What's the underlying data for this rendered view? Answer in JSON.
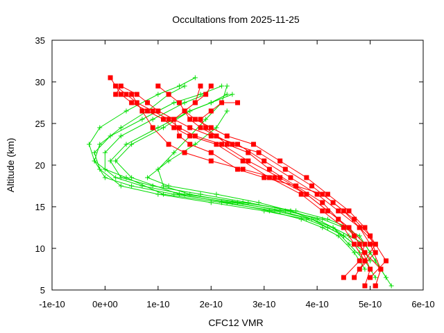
{
  "chart_data": {
    "type": "line",
    "title": "Occultations from 2025-11-25",
    "xlabel": "CFC12 VMR",
    "ylabel": "Altitude (km)",
    "xlim": [
      -1e-10,
      6e-10
    ],
    "ylim": [
      5,
      35
    ],
    "x_tick_labels": [
      "-1e-10",
      "0e+00",
      "1e-10",
      "2e-10",
      "3e-10",
      "4e-10",
      "5e-10",
      "6e-10"
    ],
    "x_tick_values": [
      -1e-10,
      0,
      1e-10,
      2e-10,
      3e-10,
      4e-10,
      5e-10,
      6e-10
    ],
    "y_tick_labels": [
      "5",
      "10",
      "15",
      "20",
      "25",
      "30",
      "35"
    ],
    "y_tick_values": [
      5,
      10,
      15,
      20,
      25,
      30,
      35
    ],
    "grid": false,
    "legend": "none",
    "series": [
      {
        "name": "red profiles",
        "color": "#ff0000",
        "marker": "filled-square",
        "profiles": [
          {
            "x": [
              4.9e-10,
              5e-10,
              4.8e-10,
              4.6e-10,
              4.2e-10,
              3.8e-10,
              3.3e-10,
              2.7e-10,
              2.2e-10,
              1.7e-10,
              1.4e-10,
              1.2e-10,
              9e-11,
              6e-11,
              4e-11,
              2e-11,
              1e-11
            ],
            "y": [
              5.5,
              7.5,
              10.5,
              12.5,
              14.5,
              16.5,
              18.5,
              20.5,
              22.5,
              23.5,
              24.5,
              25.5,
              26.5,
              27.5,
              28.5,
              29.5,
              30.5
            ]
          },
          {
            "x": [
              5.1e-10,
              5.2e-10,
              5e-10,
              4.8e-10,
              4.4e-10,
              4e-10,
              3.5e-10,
              3e-10,
              2.5e-10,
              2e-10,
              1.6e-10,
              1.3e-10,
              1e-10,
              8e-11,
              6e-11,
              3e-11,
              2e-11
            ],
            "y": [
              5.5,
              7.5,
              10.5,
              12.5,
              14.5,
              16.5,
              18.5,
              20.5,
              22.5,
              23.5,
              24.5,
              25.5,
              26.5,
              27.5,
              28.5,
              29.5,
              28.5
            ]
          },
          {
            "x": [
              4.7e-10,
              4.9e-10,
              4.7e-10,
              4.5e-10,
              4.1e-10,
              3.7e-10,
              3.1e-10,
              2.6e-10,
              2.1e-10,
              1.6e-10,
              1.3e-10,
              1.1e-10,
              8e-11,
              5e-11,
              3e-11,
              2e-11,
              3e-11
            ],
            "y": [
              6.5,
              8.5,
              10.5,
              12.5,
              14.5,
              16.5,
              18.5,
              20.5,
              22.5,
              23.5,
              24.5,
              25.5,
              26.5,
              27.5,
              28.5,
              29.5,
              28.5
            ]
          },
          {
            "x": [
              5e-10,
              5.3e-10,
              5.1e-10,
              4.9e-10,
              4.6e-10,
              4.2e-10,
              3.8e-10,
              3.3e-10,
              2.8e-10,
              2.3e-10,
              2e-10,
              1.7e-10,
              1.5e-10,
              1.4e-10,
              1.2e-10,
              1e-10
            ],
            "y": [
              6.5,
              8.5,
              10.5,
              12.5,
              14.5,
              16.5,
              18.5,
              20.5,
              22.5,
              23.5,
              24.5,
              25.5,
              26.5,
              27.5,
              28.5,
              29.5
            ]
          },
          {
            "x": [
              4.8e-10,
              5.1e-10,
              5e-10,
              4.7e-10,
              4.3e-10,
              3.9e-10,
              3.4e-10,
              2.9e-10,
              2.4e-10,
              2.1e-10,
              1.8e-10,
              1.6e-10,
              1.5e-10,
              1.7e-10,
              1.9e-10,
              2e-10
            ],
            "y": [
              7.5,
              9.5,
              11.5,
              13.5,
              15.5,
              17.5,
              19.5,
              21.5,
              22.5,
              23.5,
              24.5,
              25.5,
              26.5,
              27.5,
              28.5,
              29.5
            ]
          },
          {
            "x": [
              4.5e-10,
              4.8e-10,
              4.9e-10,
              4.6e-10,
              4.2e-10,
              3.8e-10,
              3.2e-10,
              2.6e-10,
              2e-10,
              1.5e-10,
              1.2e-10,
              9e-11,
              7e-11,
              5e-11
            ],
            "y": [
              6.5,
              8.5,
              10.5,
              12.5,
              14.5,
              16.5,
              18.5,
              19.5,
              20.5,
              21.5,
              22.5,
              24.5,
              26.5,
              28.5
            ]
          },
          {
            "x": [
              5.1e-10,
              5.2e-10,
              4.9e-10,
              4.7e-10,
              4.4e-10,
              4.1e-10,
              3.6e-10,
              3.1e-10,
              2.7e-10,
              2.3e-10,
              2.1e-10,
              1.9e-10,
              1.8e-10,
              2e-10,
              2.2e-10,
              2.5e-10
            ],
            "y": [
              5.5,
              7.5,
              9.5,
              11.5,
              13.5,
              15.5,
              17.5,
              19.5,
              21.5,
              22.5,
              23.5,
              24.5,
              25.5,
              26.5,
              27.5,
              27.5
            ]
          },
          {
            "x": [
              4.9e-10,
              5.1e-10,
              4.8e-10,
              4.5e-10,
              4.1e-10,
              3.6e-10,
              3e-10,
              2.5e-10,
              2e-10,
              1.6e-10,
              1.4e-10,
              1.3e-10,
              1.5e-10,
              1.7e-10,
              1.8e-10
            ],
            "y": [
              8.5,
              10.5,
              12.5,
              14.5,
              16.5,
              17.5,
              18.5,
              19.5,
              21.5,
              22.5,
              23.5,
              25.5,
              26.5,
              27.5,
              29.5
            ]
          }
        ]
      },
      {
        "name": "green profiles",
        "color": "#00dd00",
        "marker": "plus",
        "profiles": [
          {
            "x": [
              5.4e-10,
              5.3e-10,
              5.1e-10,
              4.9e-10,
              4.6e-10,
              4.2e-10,
              3.6e-10,
              2.6e-10,
              1.5e-10,
              7e-11,
              2e-11,
              -2e-11,
              -3e-11,
              -1e-11,
              4e-11,
              1e-10,
              1.4e-10,
              1.7e-10
            ],
            "y": [
              5.5,
              6.5,
              8.5,
              10.5,
              12.5,
              13.5,
              14.5,
              15.5,
              16.5,
              17.5,
              18.5,
              20.5,
              22.5,
              24.5,
              26.5,
              28.5,
              29.5,
              30.5
            ]
          },
          {
            "x": [
              5.3e-10,
              5.2e-10,
              5e-10,
              4.8e-10,
              4.5e-10,
              4.1e-10,
              3.4e-10,
              2.4e-10,
              1.3e-10,
              5e-11,
              0.0,
              -2e-11,
              -1e-11,
              3e-11,
              8e-11,
              1.2e-10,
              1.5e-10
            ],
            "y": [
              6.5,
              7.5,
              9.5,
              11.5,
              12.5,
              13.5,
              14.5,
              15.5,
              16.5,
              17.5,
              18.5,
              20.5,
              22.5,
              24.5,
              26.5,
              28.5,
              29.5
            ]
          },
          {
            "x": [
              5.2e-10,
              5.1e-10,
              4.9e-10,
              4.6e-10,
              4.3e-10,
              3.9e-10,
              3.2e-10,
              2.2e-10,
              1.1e-10,
              4e-11,
              0.0,
              0.0,
              3e-11,
              9e-11,
              1.5e-10,
              1.9e-10
            ],
            "y": [
              7.5,
              8.5,
              10.5,
              11.5,
              12.5,
              13.5,
              14.5,
              15.5,
              16.5,
              18.5,
              19.5,
              21.5,
              23.5,
              25.5,
              27.5,
              28.5
            ]
          },
          {
            "x": [
              5e-10,
              4.9e-10,
              4.7e-10,
              4.5e-10,
              4.2e-10,
              3.8e-10,
              3e-10,
              2e-10,
              1e-10,
              3e-11,
              -1e-11,
              -2e-11,
              1e-11,
              7e-11,
              1.3e-10,
              1.8e-10,
              2.2e-10
            ],
            "y": [
              8.5,
              9.5,
              10.5,
              11.5,
              12.5,
              13.5,
              14.5,
              15.5,
              16.5,
              17.5,
              19.5,
              21.5,
              23.5,
              25.5,
              27.5,
              28.5,
              29.5
            ]
          },
          {
            "x": [
              4.8e-10,
              4.7e-10,
              4.5e-10,
              4.3e-10,
              4e-10,
              3.5e-10,
              2.7e-10,
              1.8e-10,
              9e-11,
              3e-11,
              1e-11,
              4e-11,
              1e-10,
              1.6e-10,
              2e-10,
              2.3e-10
            ],
            "y": [
              9.5,
              10.5,
              11.5,
              12.5,
              13.5,
              14.5,
              15.5,
              16.5,
              17.5,
              18.5,
              20.5,
              22.5,
              24.5,
              26.5,
              27.5,
              28.5
            ]
          },
          {
            "x": [
              5.1e-10,
              4.9e-10,
              4.6e-10,
              4.3e-10,
              3.9e-10,
              3.3e-10,
              2.5e-10,
              1.6e-10,
              1.1e-10,
              1e-10,
              1.3e-10,
              1.6e-10,
              1.9e-10,
              2.2e-10,
              2.3e-10
            ],
            "y": [
              6.5,
              8.5,
              10.5,
              12.5,
              13.5,
              14.5,
              15.5,
              16.5,
              17.5,
              19.5,
              21.5,
              23.5,
              25.5,
              27.5,
              29.5
            ]
          },
          {
            "x": [
              4.9e-10,
              4.7e-10,
              4.4e-10,
              4.1e-10,
              3.7e-10,
              3.1e-10,
              2.3e-10,
              1.4e-10,
              5e-11,
              2e-11,
              5e-11,
              1.1e-10,
              1.6e-10,
              2e-10,
              2.4e-10
            ],
            "y": [
              7.5,
              9.5,
              11.5,
              12.5,
              13.5,
              14.5,
              15.5,
              16.5,
              18.5,
              20.5,
              22.5,
              24.5,
              26.5,
              27.5,
              28.5
            ]
          },
          {
            "x": [
              4.7e-10,
              4.5e-10,
              4.2e-10,
              3.9e-10,
              3.5e-10,
              2.9e-10,
              2.1e-10,
              1.2e-10,
              8e-11,
              1.2e-10,
              1.7e-10,
              2.1e-10,
              2.3e-10
            ],
            "y": [
              10.5,
              11.5,
              12.5,
              13.5,
              14.5,
              15.5,
              16.5,
              17.5,
              18.5,
              20.5,
              22.5,
              24.5,
              26.5
            ]
          }
        ]
      }
    ]
  }
}
